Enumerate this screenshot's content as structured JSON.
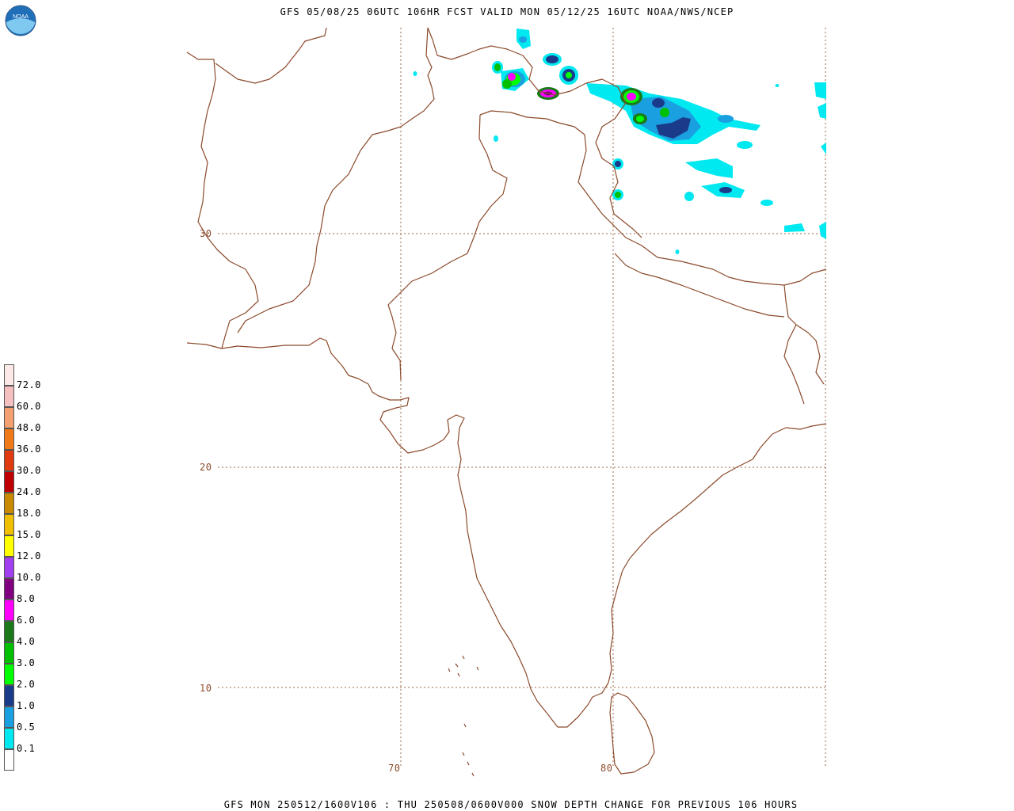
{
  "header": {
    "title": "GFS 05/08/25 06UTC 106HR FCST VALID MON 05/12/25 16UTC NOAA/NWS/NCEP"
  },
  "footer": {
    "caption": "GFS MON 250512/1600V106 : THU 250508/0600V000 SNOW DEPTH CHANGE FOR PREVIOUS 106 HOURS"
  },
  "logo": {
    "text": "NOAA"
  },
  "grid": {
    "latitude_labels": [
      "30",
      "20",
      "10"
    ],
    "longitude_labels": [
      "70",
      "80"
    ]
  },
  "legend": {
    "items": [
      {
        "label": "72.0",
        "color": "#f4c0c0"
      },
      {
        "label": "60.0",
        "color": "#f4a070"
      },
      {
        "label": "48.0",
        "color": "#f07a18"
      },
      {
        "label": "36.0",
        "color": "#e03a10"
      },
      {
        "label": "30.0",
        "color": "#c00000"
      },
      {
        "label": "24.0",
        "color": "#c88a00"
      },
      {
        "label": "18.0",
        "color": "#f0c000"
      },
      {
        "label": "15.0",
        "color": "#ffff00"
      },
      {
        "label": "12.0",
        "color": "#a040f0"
      },
      {
        "label": "10.0",
        "color": "#800080"
      },
      {
        "label": "8.0",
        "color": "#ff00ff"
      },
      {
        "label": "6.0",
        "color": "#1a7a1a"
      },
      {
        "label": "4.0",
        "color": "#00c000"
      },
      {
        "label": "3.0",
        "color": "#00ff00"
      },
      {
        "label": "2.0",
        "color": "#1a3a8a"
      },
      {
        "label": "1.0",
        "color": "#1aa0e0"
      },
      {
        "label": "0.5",
        "color": "#00e8f0"
      },
      {
        "label": "0.1",
        "color": "#ffffff"
      }
    ],
    "top_color": "#fde8e8"
  },
  "colors": {
    "coastline": "#8b4a2b",
    "gridline": "#9b6a4b"
  }
}
